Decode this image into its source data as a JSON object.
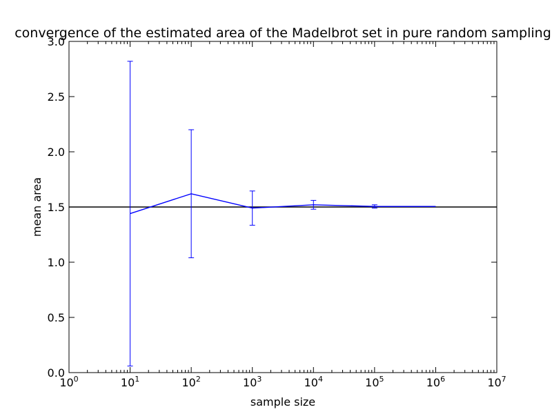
{
  "chart_data": {
    "type": "line",
    "title": "convergence of the estimated area of the Madelbrot set in pure random sampling",
    "xlabel": "sample size",
    "ylabel": "mean area",
    "xscale": "log",
    "xlim": [
      1,
      10000000
    ],
    "ylim": [
      0.0,
      3.0
    ],
    "x_ticks": [
      {
        "base": "10",
        "exp": "0"
      },
      {
        "base": "10",
        "exp": "1"
      },
      {
        "base": "10",
        "exp": "2"
      },
      {
        "base": "10",
        "exp": "3"
      },
      {
        "base": "10",
        "exp": "4"
      },
      {
        "base": "10",
        "exp": "5"
      },
      {
        "base": "10",
        "exp": "6"
      },
      {
        "base": "10",
        "exp": "7"
      }
    ],
    "y_ticks": [
      "0.0",
      "0.5",
      "1.0",
      "1.5",
      "2.0",
      "2.5",
      "3.0"
    ],
    "grid": false,
    "legend": "none",
    "series": [
      {
        "color": "#0000ff",
        "x": [
          10,
          100,
          1000,
          10000,
          100000,
          1000000
        ],
        "y": [
          1.44,
          1.62,
          1.49,
          1.52,
          1.505,
          1.505
        ],
        "yerr": [
          1.38,
          0.58,
          0.155,
          0.04,
          0.015,
          0.0
        ]
      }
    ],
    "reference_line": {
      "y": 1.5,
      "color": "#000000"
    }
  }
}
